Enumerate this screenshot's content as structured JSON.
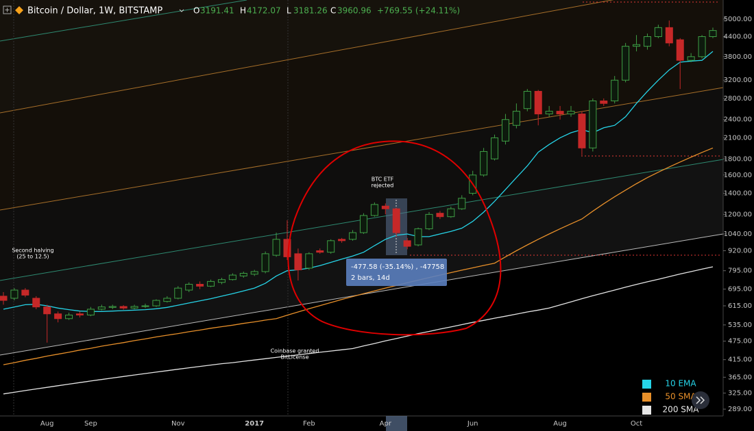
{
  "chart_data": {
    "type": "candlestick",
    "title": "Bitcoin / Dollar, 1W, BITSTAMP",
    "ohlc_labels": [
      "O",
      "H",
      "L",
      "C"
    ],
    "ohlc_values": [
      3191.41,
      4172.07,
      3181.26,
      3960.96
    ],
    "change_label": "+769.55 (+24.11%)",
    "log_scale": true,
    "up_color": "#3f9e45",
    "down_color": "#c62828",
    "categories": [
      null,
      null,
      null,
      null,
      "Aug",
      null,
      null,
      null,
      "Sep",
      null,
      null,
      null,
      null,
      null,
      null,
      null,
      "Nov",
      null,
      null,
      null,
      null,
      null,
      null,
      "2017",
      null,
      null,
      null,
      null,
      "Feb",
      null,
      null,
      null,
      null,
      null,
      null,
      "Apr",
      null,
      null,
      null,
      null,
      null,
      null,
      null,
      "Jun",
      null,
      null,
      null,
      null,
      null,
      null,
      null,
      "Aug",
      null,
      null,
      null,
      null,
      null,
      null,
      "Oct",
      null,
      null,
      null,
      null,
      null,
      null,
      null
    ],
    "open": [
      660,
      650,
      690,
      650,
      610,
      580,
      560,
      580,
      575,
      600,
      608,
      612,
      605,
      612,
      615,
      635,
      650,
      690,
      720,
      710,
      730,
      745,
      765,
      775,
      790,
      890,
      1000,
      900,
      810,
      920,
      910,
      1000,
      1000,
      1050,
      1190,
      1275,
      1250,
      990,
      960,
      1080,
      1210,
      1180,
      1250,
      1400,
      1600,
      1800,
      2050,
      2300,
      2600,
      2950,
      2500,
      2550,
      2500,
      2500,
      1950,
      2750,
      2750,
      3200,
      4100,
      4100,
      4400,
      4700,
      4300,
      3700,
      3800,
      4400
    ],
    "high": [
      680,
      700,
      700,
      660,
      620,
      590,
      585,
      590,
      610,
      620,
      620,
      618,
      620,
      625,
      645,
      660,
      710,
      730,
      735,
      745,
      755,
      780,
      790,
      800,
      915,
      1050,
      1150,
      935,
      910,
      935,
      1000,
      1010,
      1070,
      1210,
      1310,
      1300,
      1260,
      1010,
      1090,
      1220,
      1230,
      1270,
      1380,
      1650,
      1950,
      2150,
      2500,
      2700,
      3000,
      2980,
      2650,
      2650,
      2650,
      2550,
      2800,
      2800,
      3300,
      4200,
      4450,
      4500,
      4800,
      4950,
      4350,
      3900,
      4450,
      4700
    ],
    "low": [
      620,
      640,
      655,
      600,
      470,
      545,
      555,
      565,
      570,
      595,
      600,
      598,
      600,
      605,
      610,
      630,
      645,
      680,
      695,
      705,
      720,
      740,
      755,
      765,
      780,
      880,
      860,
      740,
      800,
      900,
      900,
      975,
      990,
      1040,
      1180,
      1200,
      1020,
      930,
      950,
      1070,
      1160,
      1170,
      1240,
      1380,
      1580,
      1780,
      2000,
      2250,
      2550,
      2300,
      2450,
      2400,
      2450,
      1850,
      1900,
      2650,
      2700,
      3150,
      3950,
      4000,
      4350,
      4100,
      3000,
      3650,
      3750,
      4350
    ],
    "close": [
      640,
      690,
      665,
      610,
      580,
      560,
      575,
      575,
      600,
      610,
      612,
      605,
      612,
      615,
      640,
      650,
      700,
      720,
      710,
      735,
      745,
      770,
      780,
      790,
      900,
      1000,
      880,
      800,
      900,
      910,
      990,
      990,
      1050,
      1190,
      1290,
      1250,
      1050,
      950,
      1080,
      1200,
      1180,
      1250,
      1350,
      1600,
      1900,
      2100,
      2400,
      2550,
      2950,
      2500,
      2550,
      2500,
      2550,
      1950,
      2750,
      2700,
      3200,
      4100,
      4150,
      4400,
      4700,
      4200,
      3700,
      3800,
      4400,
      4600
    ],
    "series": [
      {
        "name": "10 EMA",
        "color": "#26d4e8",
        "values": [
          600,
          610,
          620,
          622,
          615,
          605,
          598,
          592,
          590,
          590,
          592,
          594,
          596,
          598,
          602,
          608,
          618,
          628,
          638,
          648,
          660,
          672,
          686,
          700,
          725,
          765,
          795,
          800,
          810,
          825,
          845,
          865,
          885,
          910,
          955,
          1000,
          1030,
          1040,
          1020,
          1020,
          1040,
          1060,
          1085,
          1140,
          1220,
          1320,
          1440,
          1570,
          1710,
          1890,
          2000,
          2100,
          2180,
          2230,
          2180,
          2260,
          2300,
          2450,
          2700,
          2950,
          3200,
          3450,
          3650,
          3680,
          3700,
          3950
        ]
      },
      {
        "name": "50 SMA",
        "color": "#e8902a",
        "values": [
          400,
          406,
          413,
          419,
          426,
          432,
          438,
          445,
          451,
          458,
          464,
          470,
          477,
          483,
          490,
          496,
          502,
          509,
          515,
          522,
          528,
          534,
          541,
          547,
          554,
          560,
          574,
          588,
          602,
          616,
          630,
          644,
          658,
          672,
          686,
          700,
          714,
          728,
          742,
          756,
          770,
          784,
          798,
          812,
          826,
          840,
          880,
          920,
          960,
          1000,
          1040,
          1080,
          1120,
          1160,
          1228,
          1297,
          1365,
          1433,
          1502,
          1570,
          1633,
          1697,
          1760,
          1823,
          1887,
          1950
        ]
      },
      {
        "name": "200 SMA",
        "color": "#e6e6e6",
        "values": [
          323,
          327,
          331,
          335,
          339,
          343,
          347,
          351,
          355,
          359,
          363,
          367,
          371,
          375,
          379,
          383,
          387,
          391,
          395,
          399,
          403,
          406,
          410,
          414,
          418,
          422,
          426,
          430,
          434,
          438,
          442,
          446,
          450,
          459,
          467,
          476,
          484,
          493,
          502,
          510,
          519,
          527,
          536,
          545,
          553,
          562,
          570,
          579,
          588,
          596,
          605,
          619,
          633,
          648,
          662,
          676,
          690,
          705,
          719,
          733,
          747,
          761,
          776,
          790,
          804,
          818
        ]
      }
    ],
    "ylim": [
      275,
      5750
    ],
    "yticks": [
      {
        "value": 5000,
        "label": "5000.00"
      },
      {
        "value": 4400,
        "label": "4400.00"
      },
      {
        "value": 3800,
        "label": "3800.00"
      },
      {
        "value": 3200,
        "label": "3200.00"
      },
      {
        "value": 2800,
        "label": "2800.00"
      },
      {
        "value": 2400,
        "label": "2400.00"
      },
      {
        "value": 2100,
        "label": "2100.00"
      },
      {
        "value": 1800,
        "label": "1800.00"
      },
      {
        "value": 1600,
        "label": "1600.00"
      },
      {
        "value": 1400,
        "label": "1400.00"
      },
      {
        "value": 1200,
        "label": "1200.00"
      },
      {
        "value": 1040,
        "label": "1040.00"
      },
      {
        "value": 920,
        "label": "920.00"
      },
      {
        "value": 795,
        "label": "795.00"
      },
      {
        "value": 695,
        "label": "695.00"
      },
      {
        "value": 615,
        "label": "615.00"
      },
      {
        "value": 535,
        "label": "535.00"
      },
      {
        "value": 475,
        "label": "475.00"
      },
      {
        "value": 415,
        "label": "415.00"
      },
      {
        "value": 365,
        "label": "365.00"
      },
      {
        "value": 325,
        "label": "325.00"
      },
      {
        "value": 289,
        "label": "289.00"
      }
    ],
    "annotations": [
      [
        "Second halving",
        "(25 to 12.5)"
      ],
      [
        "BTC ETF",
        "rejected"
      ],
      [
        "Coinbase granted",
        "BitLicense"
      ]
    ],
    "measure": [
      "-477.58 (-35.14%) , -47758",
      "2 bars, 14d"
    ]
  }
}
